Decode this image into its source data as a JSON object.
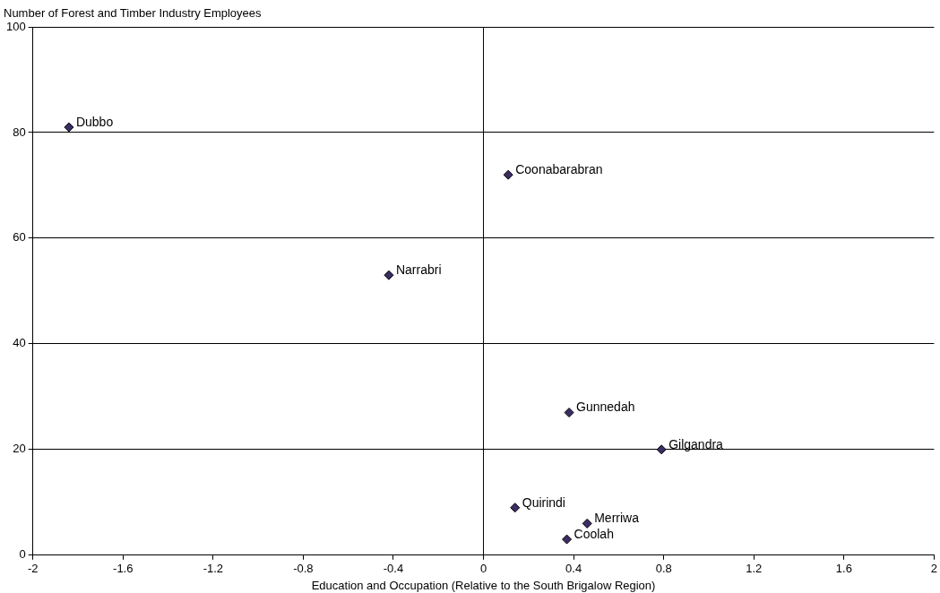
{
  "chart_data": {
    "type": "scatter",
    "xlabel": "Education and Occupation (Relative to the South Brigalow Region)",
    "ylabel": "Number of Forest and Timber Industry Employees",
    "x": [
      -1.84,
      0.11,
      -0.42,
      0.38,
      0.79,
      0.14,
      0.46,
      0.37
    ],
    "values": [
      81,
      72,
      53,
      27,
      20,
      9,
      6,
      3
    ],
    "color": "#3b2d63",
    "marker": "diamond",
    "annotations": [
      {
        "text": "Dubbo",
        "x": -1.84,
        "y": 81
      },
      {
        "text": "Coonabarabran",
        "x": 0.11,
        "y": 72
      },
      {
        "text": "Narrabri",
        "x": -0.42,
        "y": 53
      },
      {
        "text": "Gunnedah",
        "x": 0.38,
        "y": 27
      },
      {
        "text": "Gilgandra",
        "x": 0.79,
        "y": 20
      },
      {
        "text": "Quirindi",
        "x": 0.14,
        "y": 9
      },
      {
        "text": "Merriwa",
        "x": 0.46,
        "y": 6
      },
      {
        "text": "Coolah",
        "x": 0.37,
        "y": 3
      }
    ],
    "xlim": [
      -2,
      2
    ],
    "xticks": [
      -2,
      -1.6,
      -1.2,
      -0.8,
      -0.4,
      0,
      0.4,
      0.8,
      1.2,
      1.6,
      2
    ],
    "ylim": [
      0,
      100
    ],
    "yticks": [
      0,
      20,
      40,
      60,
      80,
      100
    ],
    "ref_lines": [
      {
        "axis": "x",
        "value": 0
      }
    ],
    "grid": "y",
    "legend": false
  }
}
